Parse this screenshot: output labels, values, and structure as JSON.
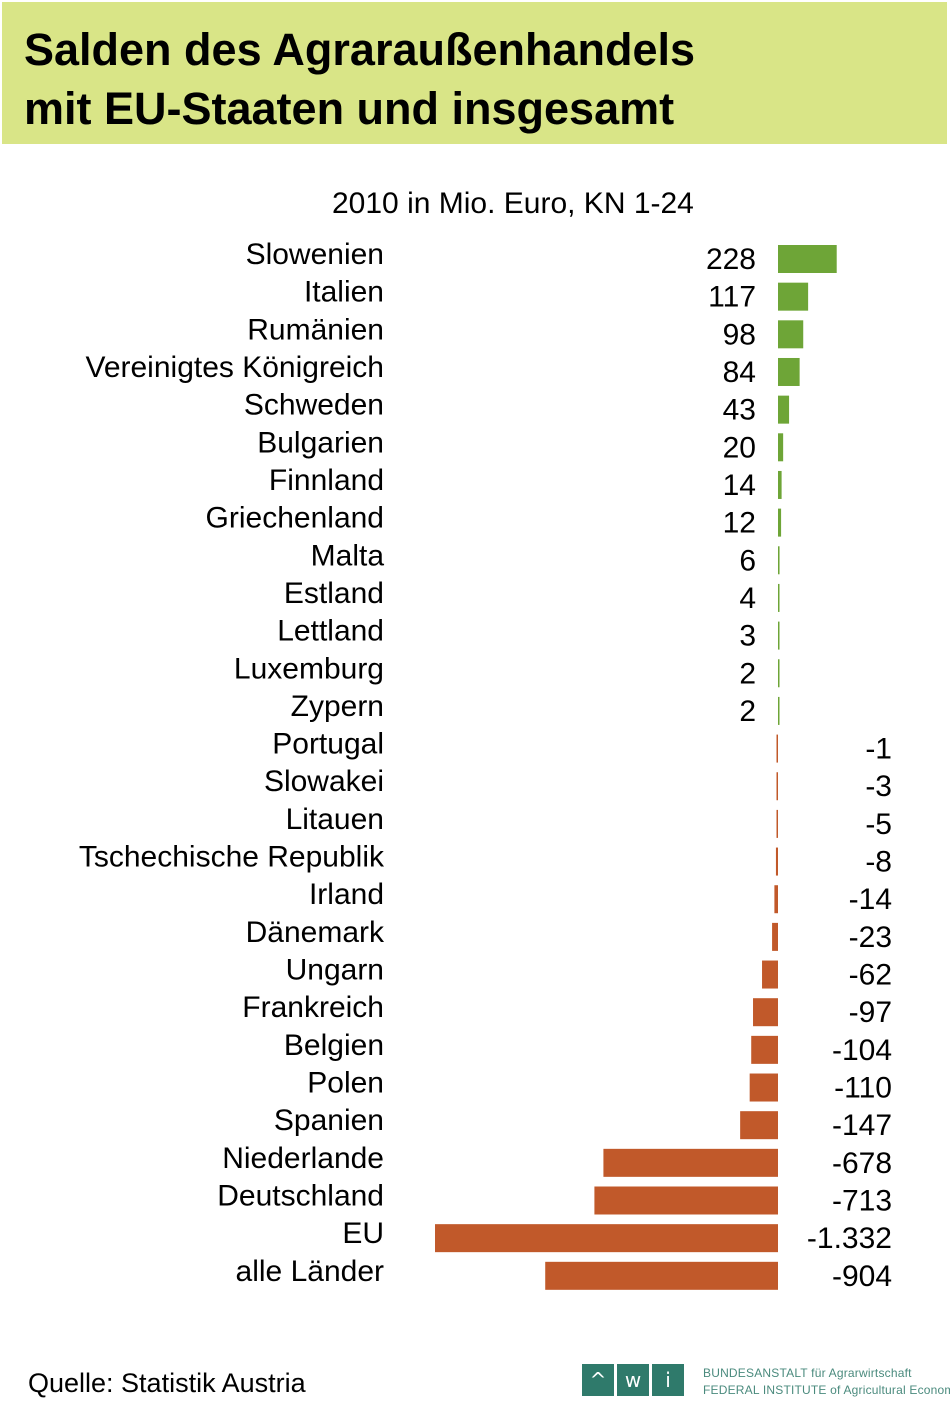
{
  "header": {
    "title_line1": "Salden des Agraraußenhandels",
    "title_line2": "mit EU-Staaten und insgesamt"
  },
  "colors": {
    "positive": "#6ea537",
    "negative": "#c1592a",
    "title_band": "#d9e587",
    "logo": "#2f7a6b"
  },
  "chart_data": {
    "type": "bar",
    "orientation": "horizontal",
    "subtitle": "2010 in Mio. Euro, KN 1-24",
    "categories": [
      "Slowenien",
      "Italien",
      "Rumänien",
      "Vereinigtes Königreich",
      "Schweden",
      "Bulgarien",
      "Finnland",
      "Griechenland",
      "Malta",
      "Estland",
      "Lettland",
      "Luxemburg",
      "Zypern",
      "Portugal",
      "Slowakei",
      "Litauen",
      "Tschechische Republik",
      "Irland",
      "Dänemark",
      "Ungarn",
      "Frankreich",
      "Belgien",
      "Polen",
      "Spanien",
      "Niederlande",
      "Deutschland",
      "EU",
      "alle Länder"
    ],
    "values": [
      228,
      117,
      98,
      84,
      43,
      20,
      14,
      12,
      6,
      4,
      3,
      2,
      2,
      -1,
      -3,
      -5,
      -8,
      -14,
      -23,
      -62,
      -97,
      -104,
      -110,
      -147,
      -678,
      -713,
      -1332,
      -904
    ],
    "value_labels": [
      "228",
      "117",
      "98",
      "84",
      "43",
      "20",
      "14",
      "12",
      "6",
      "4",
      "3",
      "2",
      "2",
      "-1",
      "-3",
      "-5",
      "-8",
      "-14",
      "-23",
      "-62",
      "-97",
      "-104",
      "-110",
      "-147",
      "-678",
      "-713",
      "-1.332",
      "-904"
    ],
    "grid": false,
    "legend": "none"
  },
  "footer": {
    "source": "Quelle: Statistik Austria",
    "logo_letters": [
      "^",
      "w",
      "i"
    ],
    "institute_de": "BUNDESANSTALT für Agrarwirtschaft",
    "institute_en": "FEDERAL INSTITUTE of Agricultural Economics"
  }
}
